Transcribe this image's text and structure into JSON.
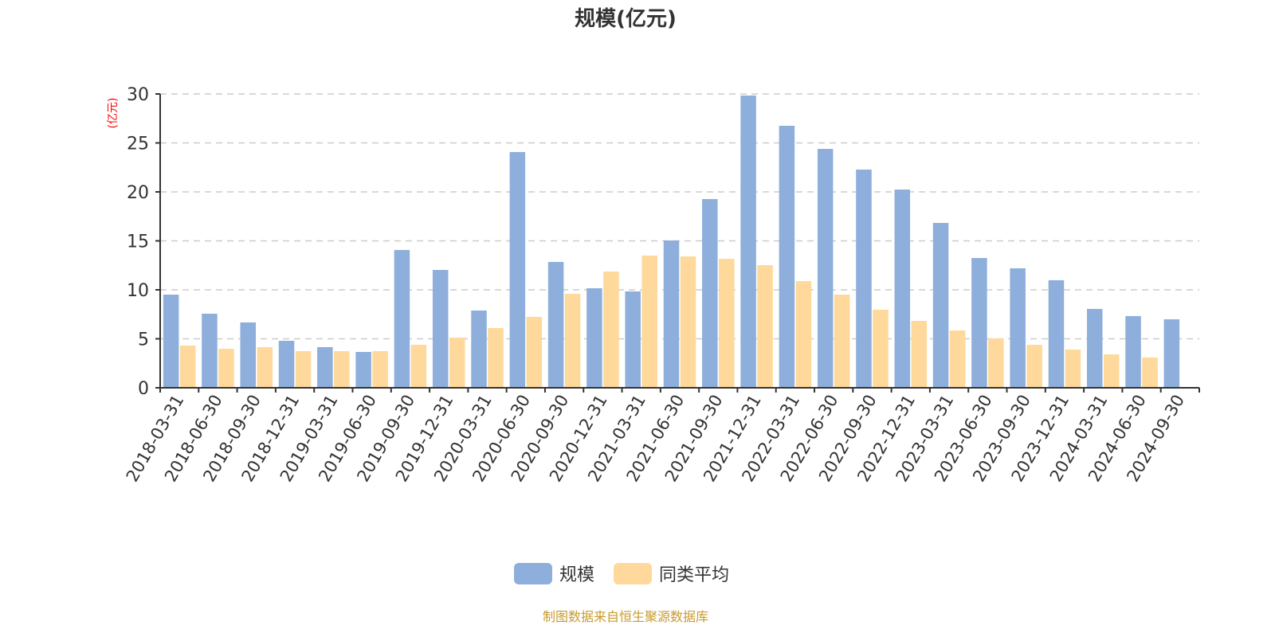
{
  "chart_data": {
    "type": "bar",
    "title": "规模(亿元)",
    "ylabel": "(亿元)",
    "xlabel": "",
    "ylim": [
      0,
      30
    ],
    "yticks": [
      0,
      5,
      10,
      15,
      20,
      25,
      30
    ],
    "grid": true,
    "legend_position": "bottom-center",
    "categories": [
      "2018-03-31",
      "2018-06-30",
      "2018-09-30",
      "2018-12-31",
      "2019-03-31",
      "2019-06-30",
      "2019-09-30",
      "2019-12-31",
      "2020-03-31",
      "2020-06-30",
      "2020-09-30",
      "2020-12-31",
      "2021-03-31",
      "2021-06-30",
      "2021-09-30",
      "2021-12-31",
      "2022-03-31",
      "2022-06-30",
      "2022-09-30",
      "2022-12-31",
      "2023-03-31",
      "2023-06-30",
      "2023-09-30",
      "2023-12-31",
      "2024-03-31",
      "2024-06-30",
      "2024-09-30"
    ],
    "series": [
      {
        "name": "规模",
        "color": "#8eaedb",
        "values": [
          9.51,
          7.56,
          6.67,
          4.8,
          4.15,
          3.66,
          14.07,
          12.03,
          7.89,
          24.07,
          12.85,
          10.16,
          9.84,
          15.04,
          19.27,
          29.84,
          26.75,
          24.39,
          22.28,
          20.24,
          16.83,
          13.25,
          12.2,
          10.98,
          8.05,
          7.32,
          6.99
        ]
      },
      {
        "name": "同类平均",
        "color": "#fed99b",
        "values": [
          4.31,
          3.98,
          4.15,
          3.74,
          3.74,
          3.74,
          4.39,
          5.12,
          6.1,
          7.24,
          9.59,
          11.87,
          13.5,
          13.41,
          13.17,
          12.52,
          10.89,
          9.51,
          7.97,
          6.83,
          5.85,
          5.04,
          4.39,
          3.9,
          3.41,
          3.09,
          null
        ]
      }
    ],
    "source": "制图数据来自恒生聚源数据库"
  }
}
